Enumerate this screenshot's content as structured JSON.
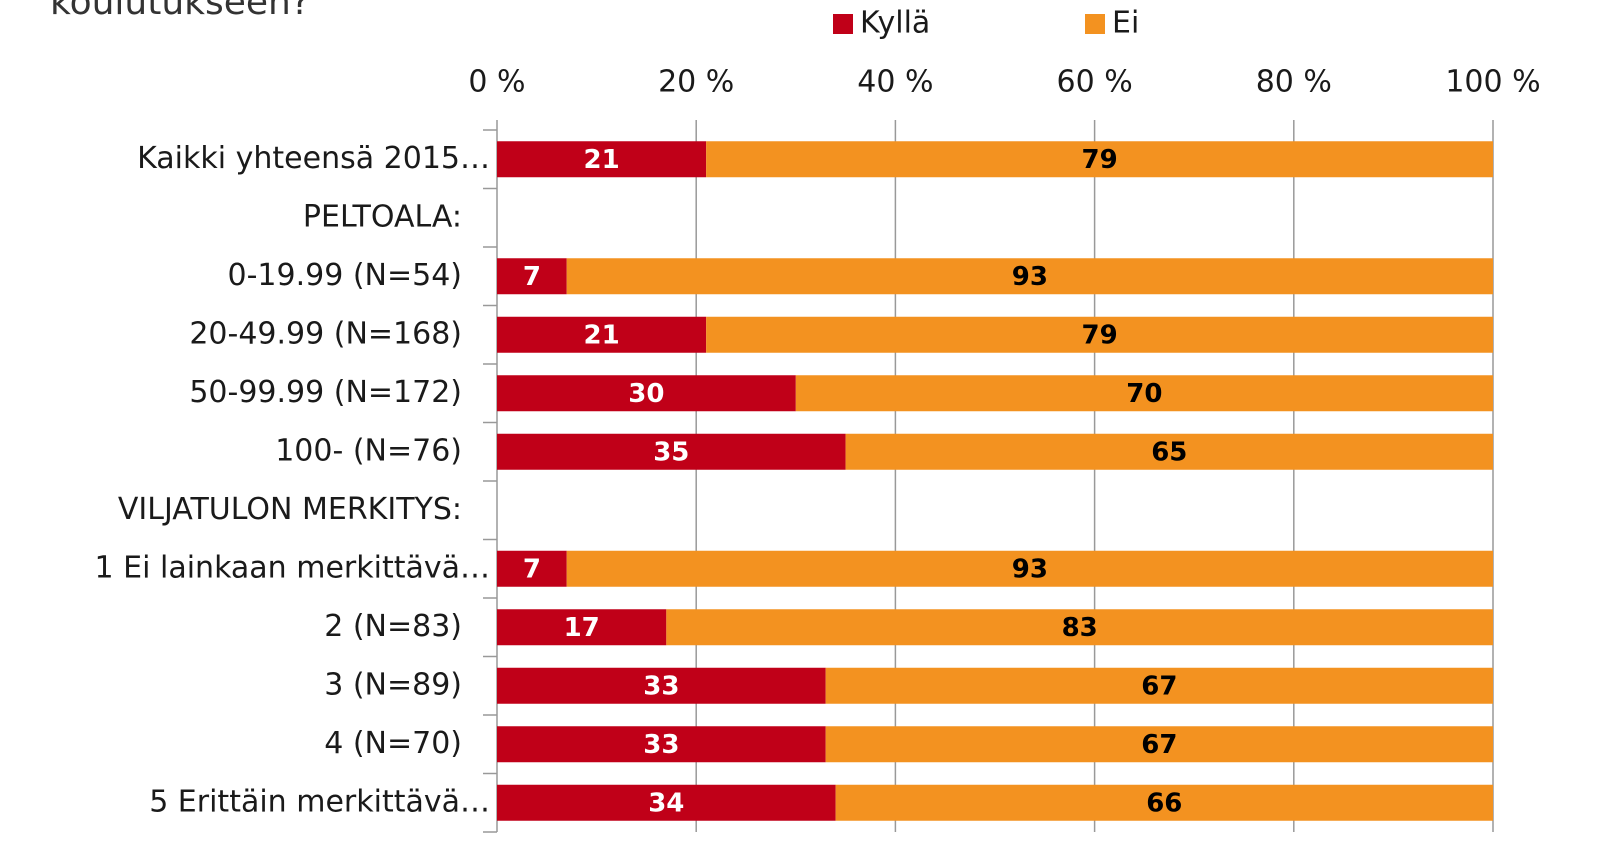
{
  "chart_data": {
    "type": "stacked-bar-horizontal",
    "title": "koulutukseen?",
    "categories": [
      "Kaikki yhteensä 2015…",
      "PELTOALA:",
      "0-19.99 (N=54)",
      "20-49.99 (N=168)",
      "50-99.99 (N=172)",
      "100- (N=76)",
      "VILJATULON MERKITYS:",
      "1 Ei lainkaan merkittävä…",
      "2 (N=83)",
      "3 (N=89)",
      "4 (N=70)",
      "5 Erittäin merkittävä…"
    ],
    "series": [
      {
        "name": "Kyllä",
        "color": "#c00018",
        "values": [
          21,
          null,
          7,
          21,
          30,
          35,
          null,
          7,
          17,
          33,
          33,
          34
        ]
      },
      {
        "name": "Ei",
        "color": "#f39220",
        "values": [
          79,
          null,
          93,
          79,
          70,
          65,
          null,
          93,
          83,
          67,
          67,
          66
        ]
      }
    ],
    "xlim": [
      0,
      100
    ],
    "xticks": [
      {
        "value": 0,
        "label": "0 %"
      },
      {
        "value": 20,
        "label": "20 %"
      },
      {
        "value": 40,
        "label": "40 %"
      },
      {
        "value": 60,
        "label": "60 %"
      },
      {
        "value": 80,
        "label": "80 %"
      },
      {
        "value": 100,
        "label": "100 %"
      }
    ],
    "grid": true,
    "legend": "top"
  }
}
